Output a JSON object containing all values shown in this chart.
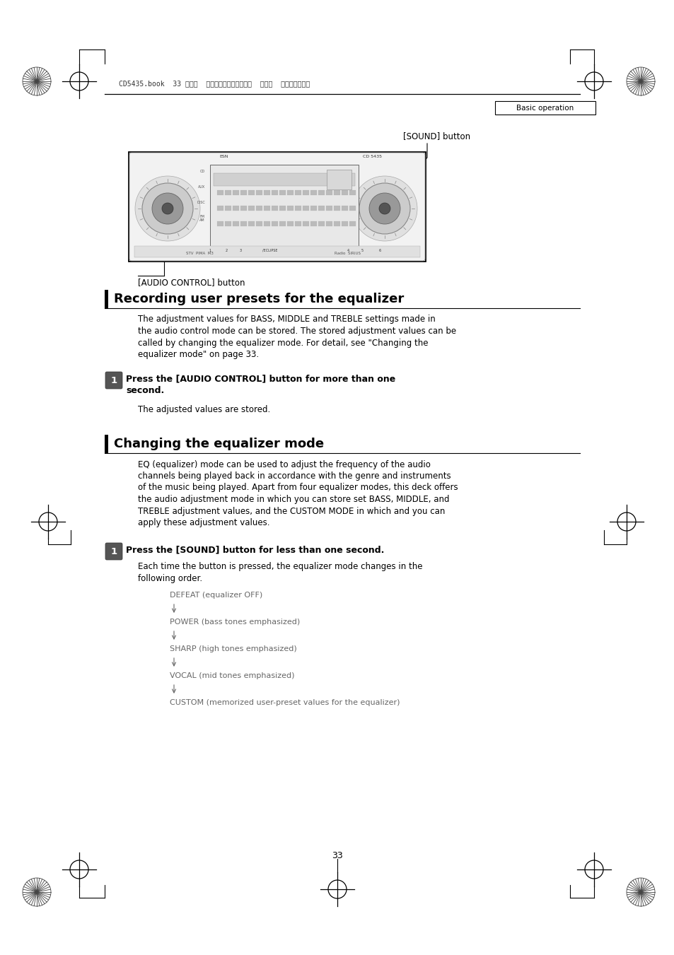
{
  "page_bg": "#ffffff",
  "page_number": "33",
  "header_text": "CD5435.book  33 ページ  ２００４年１２月１１日  土曜日  午後５時２９分",
  "basic_operation_label": "Basic operation",
  "sound_button_label": "[SOUND] button",
  "audio_control_label": "[AUDIO CONTROL] button",
  "section1_title": "Recording user presets for the equalizer",
  "section1_body_lines": [
    "The adjustment values for BASS, MIDDLE and TREBLE settings made in",
    "the audio control mode can be stored. The stored adjustment values can be",
    "called by changing the equalizer mode. For detail, see \"Changing the",
    "equalizer mode\" on page 33."
  ],
  "section1_step1_line1": "Press the [AUDIO CONTROL] button for more than one",
  "section1_step1_line2": "second.",
  "section1_step1_note": "The adjusted values are stored.",
  "section2_title": "Changing the equalizer mode",
  "section2_body_lines": [
    "EQ (equalizer) mode can be used to adjust the frequency of the audio",
    "channels being played back in accordance with the genre and instruments",
    "of the music being played. Apart from four equalizer modes, this deck offers",
    "the audio adjustment mode in which you can store set BASS, MIDDLE, and",
    "TREBLE adjustment values, and the CUSTOM MODE in which and you can",
    "apply these adjustment values."
  ],
  "section2_step1_bold": "Press the [SOUND] button for less than one second.",
  "section2_note_line1": "Each time the button is pressed, the equalizer mode changes in the",
  "section2_note_line2": "following order.",
  "eq_modes": [
    "DEFEAT (equalizer OFF)",
    "POWER (bass tones emphasized)",
    "SHARP (high tones emphasized)",
    "VOCAL (mid tones emphasized)",
    "CUSTOM (memorized user-preset values for the equalizer)"
  ],
  "ml": 148,
  "mr": 820,
  "cl": 195
}
